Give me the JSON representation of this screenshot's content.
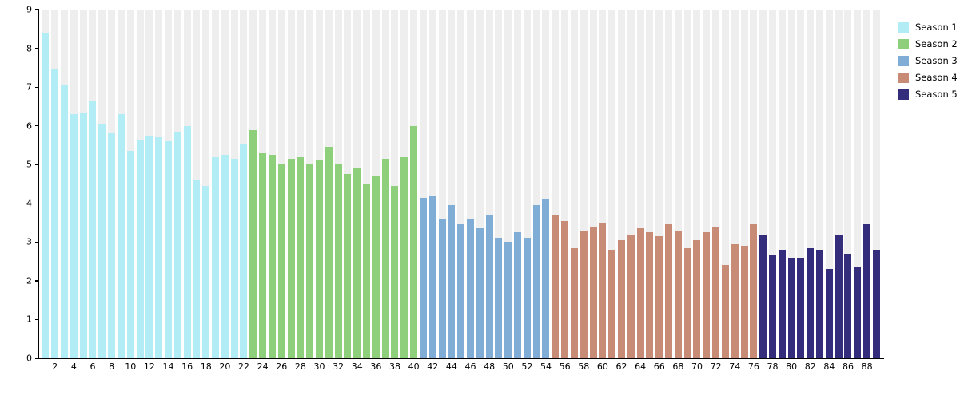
{
  "page": {
    "background_color": "#ffffff",
    "axis_color": "#000000",
    "track_color": "#efeeee"
  },
  "legend": {
    "position": "top-right",
    "items": [
      "Season 1",
      "Season 2",
      "Season 3",
      "Season 4",
      "Season 5"
    ]
  },
  "chart_data": {
    "type": "bar",
    "title": "",
    "xlabel": "",
    "ylabel": "",
    "ylim": [
      0,
      9
    ],
    "y_tick_labels": [
      "0",
      "1",
      "2",
      "3",
      "4",
      "5",
      "6",
      "7",
      "8",
      "9"
    ],
    "x_tick_labels": [
      "2",
      "4",
      "6",
      "8",
      "10",
      "12",
      "14",
      "16",
      "18",
      "20",
      "22",
      "24",
      "26",
      "28",
      "30",
      "32",
      "34",
      "36",
      "38",
      "40",
      "42",
      "44",
      "46",
      "48",
      "50",
      "52",
      "54",
      "56",
      "58",
      "60",
      "62",
      "64",
      "66",
      "68",
      "70",
      "72",
      "74",
      "76",
      "78",
      "80",
      "82",
      "84",
      "86",
      "88"
    ],
    "x_unit": "episode-number",
    "grid": false,
    "background_tracks": true,
    "legend_position": "top-right",
    "series": [
      {
        "name": "Season 1",
        "color": "#b2ecf4",
        "start_episode": 1,
        "values": [
          8.4,
          7.45,
          7.05,
          6.3,
          6.35,
          6.65,
          6.05,
          5.8,
          6.3,
          5.35,
          5.65,
          5.75,
          5.7,
          5.6,
          5.85,
          6.0,
          4.6,
          4.45,
          5.2,
          5.25,
          5.15,
          5.55
        ]
      },
      {
        "name": "Season 2",
        "color": "#8dcf7b",
        "start_episode": 23,
        "values": [
          5.9,
          5.3,
          5.25,
          5.0,
          5.15,
          5.2,
          5.0,
          5.1,
          5.45,
          5.0,
          4.75,
          4.9,
          4.5,
          4.7,
          5.15,
          4.45,
          5.2,
          6.0
        ]
      },
      {
        "name": "Season 3",
        "color": "#7fadd6",
        "start_episode": 41,
        "values": [
          4.15,
          4.2,
          3.6,
          3.95,
          3.45,
          3.6,
          3.35,
          3.7,
          3.1,
          3.0,
          3.25,
          3.1,
          3.95,
          4.1
        ]
      },
      {
        "name": "Season 4",
        "color": "#c88b76",
        "start_episode": 55,
        "values": [
          3.7,
          3.55,
          2.85,
          3.3,
          3.4,
          3.5,
          2.8,
          3.05,
          3.2,
          3.35,
          3.25,
          3.15,
          3.45,
          3.3,
          2.85,
          3.05,
          3.25,
          3.4,
          2.4,
          2.95,
          2.9,
          3.45
        ]
      },
      {
        "name": "Season 5",
        "color": "#332d7c",
        "start_episode": 77,
        "values": [
          3.2,
          2.65,
          2.8,
          2.6,
          2.6,
          2.85,
          2.8,
          2.3,
          3.2,
          2.7,
          2.35,
          3.45,
          2.8
        ]
      }
    ]
  }
}
